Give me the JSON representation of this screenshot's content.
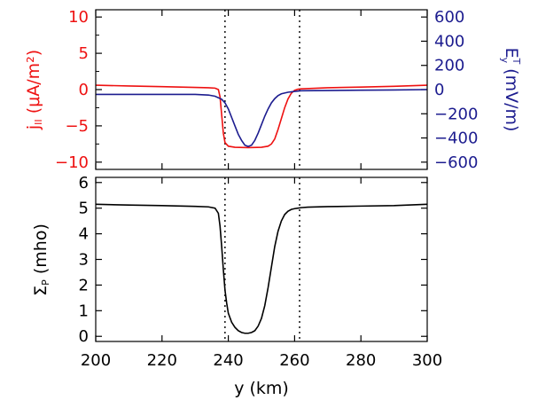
{
  "colors": {
    "jpar": "#ee1111",
    "ey": "#1c1c8f",
    "sigma": "#000000",
    "axes": "#000000"
  },
  "chart_data": [
    {
      "type": "line",
      "panel": "top",
      "xlim": [
        200,
        300
      ],
      "ylim_left": [
        -11,
        11
      ],
      "ylim_right": [
        -660,
        660
      ],
      "left_ticks": [
        "10",
        "5",
        "0",
        "−5",
        "−10"
      ],
      "left_tick_values": [
        10,
        5,
        0,
        -5,
        -10
      ],
      "right_ticks": [
        "600",
        "400",
        "200",
        "0",
        "−200",
        "−400",
        "−600"
      ],
      "right_tick_values": [
        600,
        400,
        200,
        0,
        -200,
        -400,
        -600
      ],
      "ylabel_left_main": "j",
      "ylabel_left_sub": "II",
      "ylabel_left_units": "(μA/m²)",
      "ylabel_right_main": "E",
      "ylabel_right_sup": "T",
      "ylabel_right_sub": "y",
      "ylabel_right_units": "(mV/m)",
      "dotted_x": [
        239,
        261.5
      ],
      "series": [
        {
          "axis": "left",
          "color": "#ee1111",
          "x": [
            200,
            210,
            220,
            230,
            234,
            236,
            237,
            237.5,
            238,
            238.5,
            239,
            240,
            242,
            246,
            250,
            252,
            253,
            254,
            255,
            256,
            257,
            258,
            259,
            260,
            261,
            262,
            270,
            280,
            290,
            300
          ],
          "y": [
            0.6,
            0.5,
            0.4,
            0.3,
            0.25,
            0.2,
            0.0,
            -1.0,
            -3.5,
            -6.0,
            -7.3,
            -7.8,
            -7.95,
            -8.0,
            -7.95,
            -7.8,
            -7.5,
            -6.8,
            -5.5,
            -4.0,
            -2.5,
            -1.3,
            -0.5,
            -0.1,
            0.05,
            0.1,
            0.25,
            0.35,
            0.45,
            0.6
          ]
        },
        {
          "axis": "right",
          "color": "#1c1c8f",
          "x": [
            200,
            210,
            220,
            230,
            234,
            236,
            238,
            239,
            240,
            241,
            242,
            243,
            244,
            245,
            246,
            247,
            248,
            249,
            250,
            251,
            252,
            253,
            254,
            255,
            256,
            258,
            260,
            262,
            270,
            280,
            290,
            300
          ],
          "y": [
            -40,
            -40,
            -40,
            -40,
            -45,
            -55,
            -80,
            -110,
            -160,
            -230,
            -300,
            -370,
            -420,
            -460,
            -470,
            -460,
            -420,
            -360,
            -290,
            -220,
            -160,
            -110,
            -75,
            -50,
            -35,
            -22,
            -15,
            -10,
            -8,
            -5,
            -3,
            0
          ]
        }
      ]
    },
    {
      "type": "line",
      "panel": "bottom",
      "xlim": [
        200,
        300
      ],
      "ylim": [
        -0.2,
        6.2
      ],
      "xlabel": "y (km)",
      "x_ticks": [
        "200",
        "220",
        "240",
        "260",
        "280",
        "300"
      ],
      "x_tick_values": [
        200,
        220,
        240,
        260,
        280,
        300
      ],
      "y_ticks": [
        "6",
        "5",
        "4",
        "3",
        "2",
        "1",
        "0"
      ],
      "y_tick_values": [
        6,
        5,
        4,
        3,
        2,
        1,
        0
      ],
      "ylabel_main": "Σ",
      "ylabel_sub": "P",
      "ylabel_units": "(mho)",
      "dotted_x": [
        239,
        261.5
      ],
      "series": [
        {
          "color": "#000000",
          "x": [
            200,
            210,
            220,
            230,
            234,
            236,
            237,
            237.5,
            238,
            238.5,
            239,
            239.5,
            240,
            241,
            242,
            243,
            244,
            245,
            246,
            247,
            248,
            249,
            250,
            251,
            252,
            253,
            254,
            255,
            256,
            257,
            258,
            259,
            260,
            261,
            262,
            264,
            270,
            280,
            290,
            300
          ],
          "y": [
            5.15,
            5.12,
            5.1,
            5.07,
            5.05,
            5.0,
            4.8,
            4.3,
            3.5,
            2.6,
            1.8,
            1.3,
            0.9,
            0.55,
            0.35,
            0.22,
            0.15,
            0.12,
            0.12,
            0.15,
            0.22,
            0.4,
            0.7,
            1.2,
            1.9,
            2.7,
            3.5,
            4.1,
            4.5,
            4.75,
            4.88,
            4.95,
            4.98,
            5.0,
            5.02,
            5.04,
            5.06,
            5.08,
            5.1,
            5.15
          ]
        }
      ]
    }
  ]
}
